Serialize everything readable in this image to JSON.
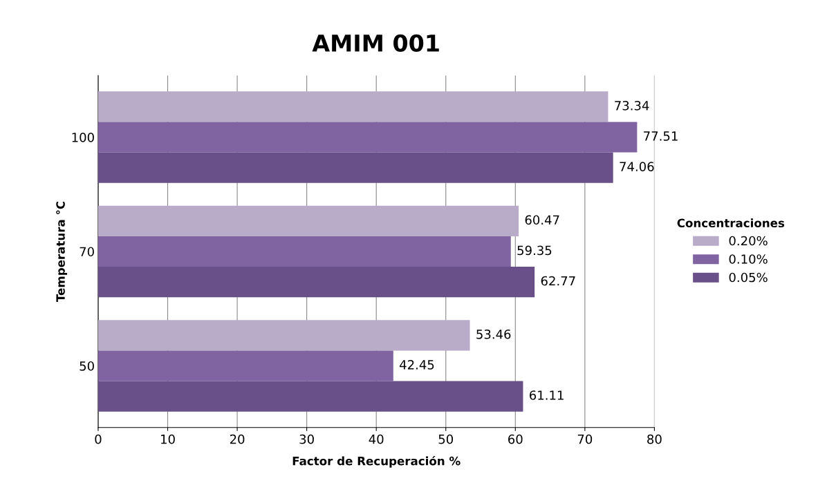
{
  "chart_data": {
    "type": "bar",
    "orientation": "horizontal",
    "title": "AMIM 001",
    "xlabel": "Factor de Recuperación %",
    "ylabel": "Temperatura °C",
    "legend_title": "Concentraciones",
    "categories": [
      "100",
      "70",
      "50"
    ],
    "series": [
      {
        "name": "0.20%",
        "color": "#b8acc8",
        "values": [
          73.34,
          60.47,
          53.46
        ]
      },
      {
        "name": "0.10%",
        "color": "#8064a2",
        "values": [
          77.51,
          59.35,
          42.45
        ]
      },
      {
        "name": "0.05%",
        "color": "#6a5088",
        "values": [
          74.06,
          62.77,
          61.11
        ]
      }
    ],
    "xlim": [
      0,
      80
    ],
    "xticks": [
      0,
      10,
      20,
      30,
      40,
      50,
      60,
      70,
      80
    ],
    "grid": "x",
    "legend": "right",
    "data_labels": true
  }
}
